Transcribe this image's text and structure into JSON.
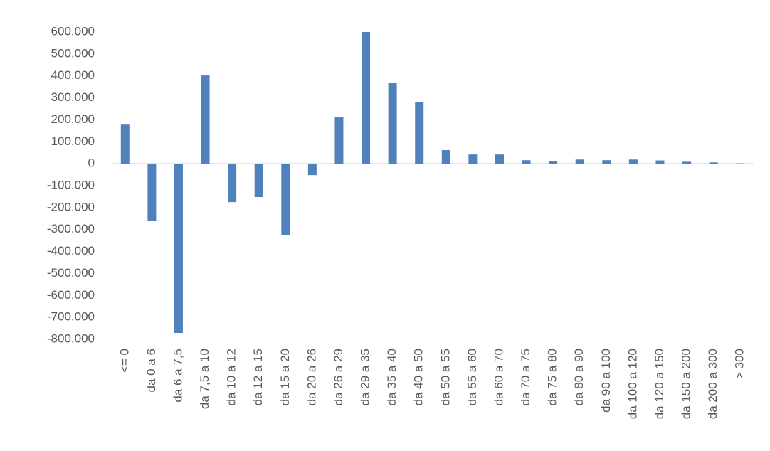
{
  "chart_data": {
    "type": "bar",
    "categories": [
      "<= 0",
      "da 0 a 6",
      "da 6 a 7,5",
      "da 7,5 a 10",
      "da 10 a 12",
      "da 12 a 15",
      "da 15 a 20",
      "da 20 a 26",
      "da 26 a 29",
      "da 29 a 35",
      "da 35 a 40",
      "da 40 a 50",
      "da 50 a 55",
      "da 55 a 60",
      "da 60 a 70",
      "da 70 a 75",
      "da 75 a 80",
      "da 80 a 90",
      "da 90 a 100",
      "da 100 a 120",
      "da 120 a 150",
      "da 150 a 200",
      "da 200 a 300",
      "> 300"
    ],
    "values": [
      178000,
      -262000,
      -771000,
      402000,
      -175000,
      -152000,
      -324000,
      -52000,
      211000,
      600000,
      369000,
      279000,
      62000,
      42000,
      42000,
      16000,
      10000,
      19000,
      16000,
      19000,
      15000,
      9000,
      6000,
      2000
    ],
    "color": "#4f81bd",
    "ylim": [
      -800000,
      600000
    ],
    "yticks": [
      {
        "value": -800000,
        "label": "-800.000"
      },
      {
        "value": -700000,
        "label": "-700.000"
      },
      {
        "value": -600000,
        "label": "-600.000"
      },
      {
        "value": -500000,
        "label": "-500.000"
      },
      {
        "value": -400000,
        "label": "-400.000"
      },
      {
        "value": -300000,
        "label": "-300.000"
      },
      {
        "value": -200000,
        "label": "-200.000"
      },
      {
        "value": -100000,
        "label": "-100.000"
      },
      0,
      {
        "value": 100000,
        "label": "100.000"
      },
      {
        "value": 200000,
        "label": "200.000"
      },
      {
        "value": 300000,
        "label": "300.000"
      },
      {
        "value": 400000,
        "label": "400.000"
      },
      {
        "value": 500000,
        "label": "500.000"
      },
      {
        "value": 600000,
        "label": "600.000"
      }
    ],
    "grid": false
  }
}
